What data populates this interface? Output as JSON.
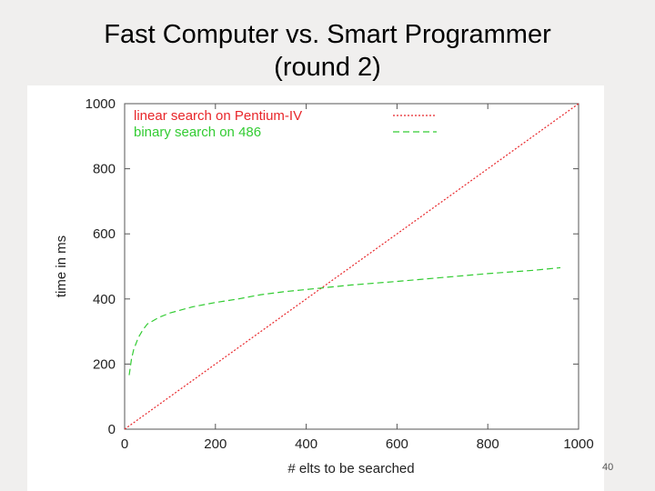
{
  "slide": {
    "title_line1": "Fast Computer vs. Smart Programmer",
    "title_line2": "(round 2)",
    "page_number": "40"
  },
  "chart_data": {
    "type": "line",
    "xlabel": "# elts to be searched",
    "ylabel": "time in ms",
    "xlim": [
      0,
      1000
    ],
    "ylim": [
      0,
      1000
    ],
    "x_ticks": [
      0,
      200,
      400,
      600,
      800,
      1000
    ],
    "y_ticks": [
      0,
      200,
      400,
      600,
      800,
      1000
    ],
    "legend_position": "top-left",
    "series": [
      {
        "name": "linear search on Pentium-IV",
        "color": "#e8262a",
        "style": "dotted",
        "x": [
          0,
          1000
        ],
        "y": [
          0,
          1000
        ]
      },
      {
        "name": "binary search on 486",
        "color": "#33cc33",
        "style": "dashed",
        "x": [
          10,
          15,
          20,
          30,
          40,
          50,
          75,
          100,
          150,
          200,
          250,
          300,
          350,
          400,
          450,
          500,
          600,
          700,
          800,
          900,
          960
        ],
        "y": [
          166,
          215,
          245,
          281,
          305,
          323,
          343,
          357,
          376,
          389,
          400,
          413,
          422,
          429,
          436,
          443,
          454,
          466,
          478,
          488,
          496
        ]
      }
    ]
  }
}
